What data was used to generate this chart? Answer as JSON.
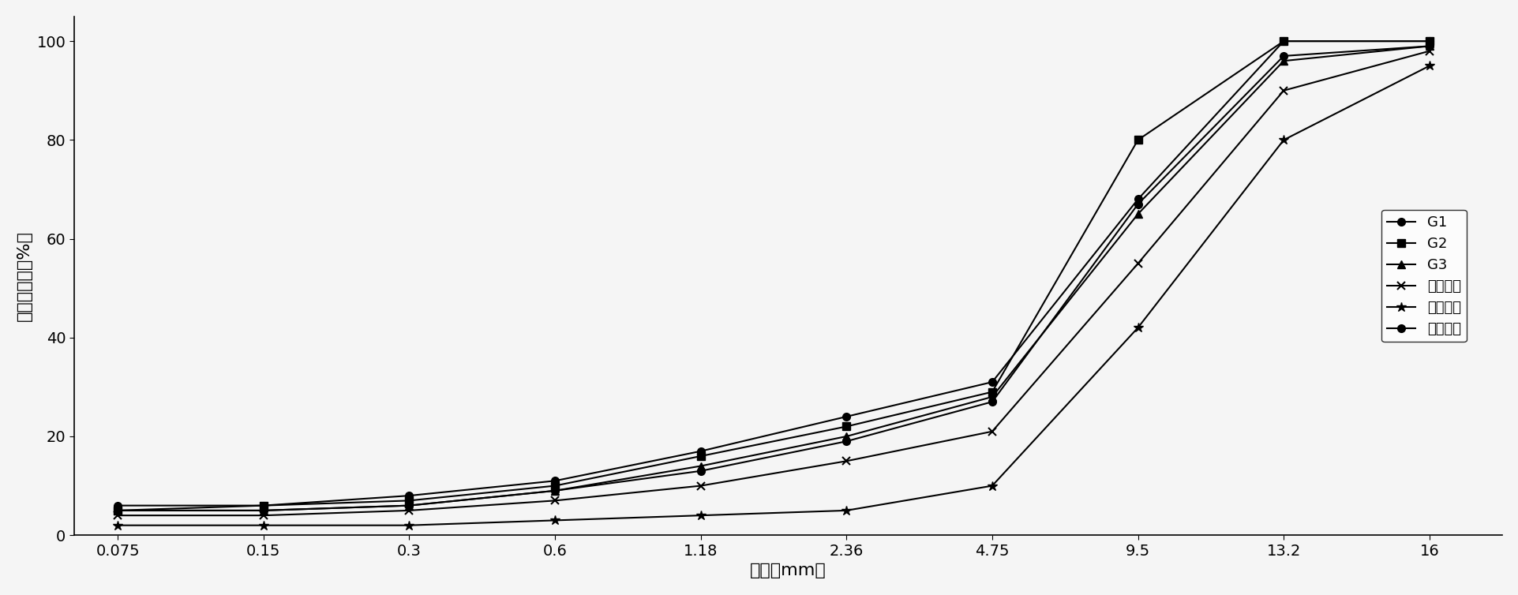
{
  "x_labels": [
    "0.075",
    "0.15",
    "0.3",
    "0.6",
    "1.18",
    "2.36",
    "4.75",
    "9.5",
    "13.2",
    "16"
  ],
  "x_values": [
    0.075,
    0.15,
    0.3,
    0.6,
    1.18,
    2.36,
    4.75,
    9.5,
    13.2,
    16
  ],
  "G1": [
    5,
    5,
    6,
    9,
    13,
    19,
    27,
    67,
    97,
    99
  ],
  "G2": [
    5,
    6,
    7,
    10,
    16,
    22,
    29,
    80,
    100,
    100
  ],
  "G3": [
    5,
    5,
    6,
    9,
    14,
    20,
    28,
    65,
    96,
    99
  ],
  "norm_mid": [
    4,
    4,
    5,
    7,
    10,
    15,
    21,
    55,
    90,
    98
  ],
  "norm_low": [
    2,
    2,
    2,
    3,
    4,
    5,
    10,
    42,
    80,
    95
  ],
  "norm_high": [
    6,
    6,
    8,
    11,
    17,
    24,
    31,
    68,
    100,
    100
  ],
  "ylabel": "累计通过率（%）",
  "xlabel": "粒径（mm）",
  "ylim": [
    0,
    105
  ],
  "yticks": [
    0,
    20,
    40,
    60,
    80,
    100
  ],
  "legend_labels": [
    "G1",
    "G2",
    "G3",
    "规范中値",
    "规范下限",
    "规范上限"
  ],
  "line_color": "#000000",
  "bg_color": "#f5f5f5"
}
